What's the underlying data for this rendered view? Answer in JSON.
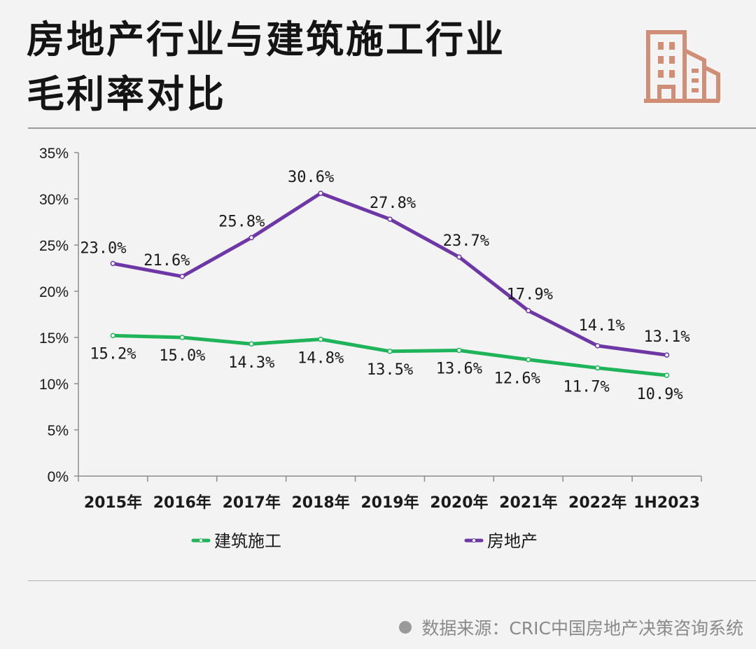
{
  "title": {
    "line1": "房地产行业与建筑施工行业",
    "line2": "毛利率对比"
  },
  "source": "数据来源：CRIC中国房地产决策咨询系统",
  "colors": {
    "construction": "#1fb35a",
    "real_estate": "#6d37a6",
    "icon": "#cf8e75"
  },
  "icons": {
    "header": "building-icon",
    "source": "dot-icon"
  },
  "chart_data": {
    "type": "line",
    "categories": [
      "2015年",
      "2016年",
      "2017年",
      "2018年",
      "2019年",
      "2020年",
      "2021年",
      "2022年",
      "1H2023"
    ],
    "ylim": [
      0,
      35
    ],
    "yticks": [
      "0%",
      "5%",
      "10%",
      "15%",
      "20%",
      "25%",
      "30%",
      "35%"
    ],
    "grid": false,
    "legend_position": "bottom",
    "series": [
      {
        "name": "建筑施工",
        "values": [
          15.2,
          15.0,
          14.3,
          14.8,
          13.5,
          13.6,
          12.6,
          11.7,
          10.9
        ],
        "labels": [
          "15.2%",
          "15.0%",
          "14.3%",
          "14.8%",
          "13.5%",
          "13.6%",
          "12.6%",
          "11.7%",
          "10.9%"
        ]
      },
      {
        "name": "房地产",
        "values": [
          23.0,
          21.6,
          25.8,
          30.6,
          27.8,
          23.7,
          17.9,
          14.1,
          13.1
        ],
        "labels": [
          "23.0%",
          "21.6%",
          "25.8%",
          "30.6%",
          "27.8%",
          "23.7%",
          "17.9%",
          "14.1%",
          "13.1%"
        ]
      }
    ]
  }
}
